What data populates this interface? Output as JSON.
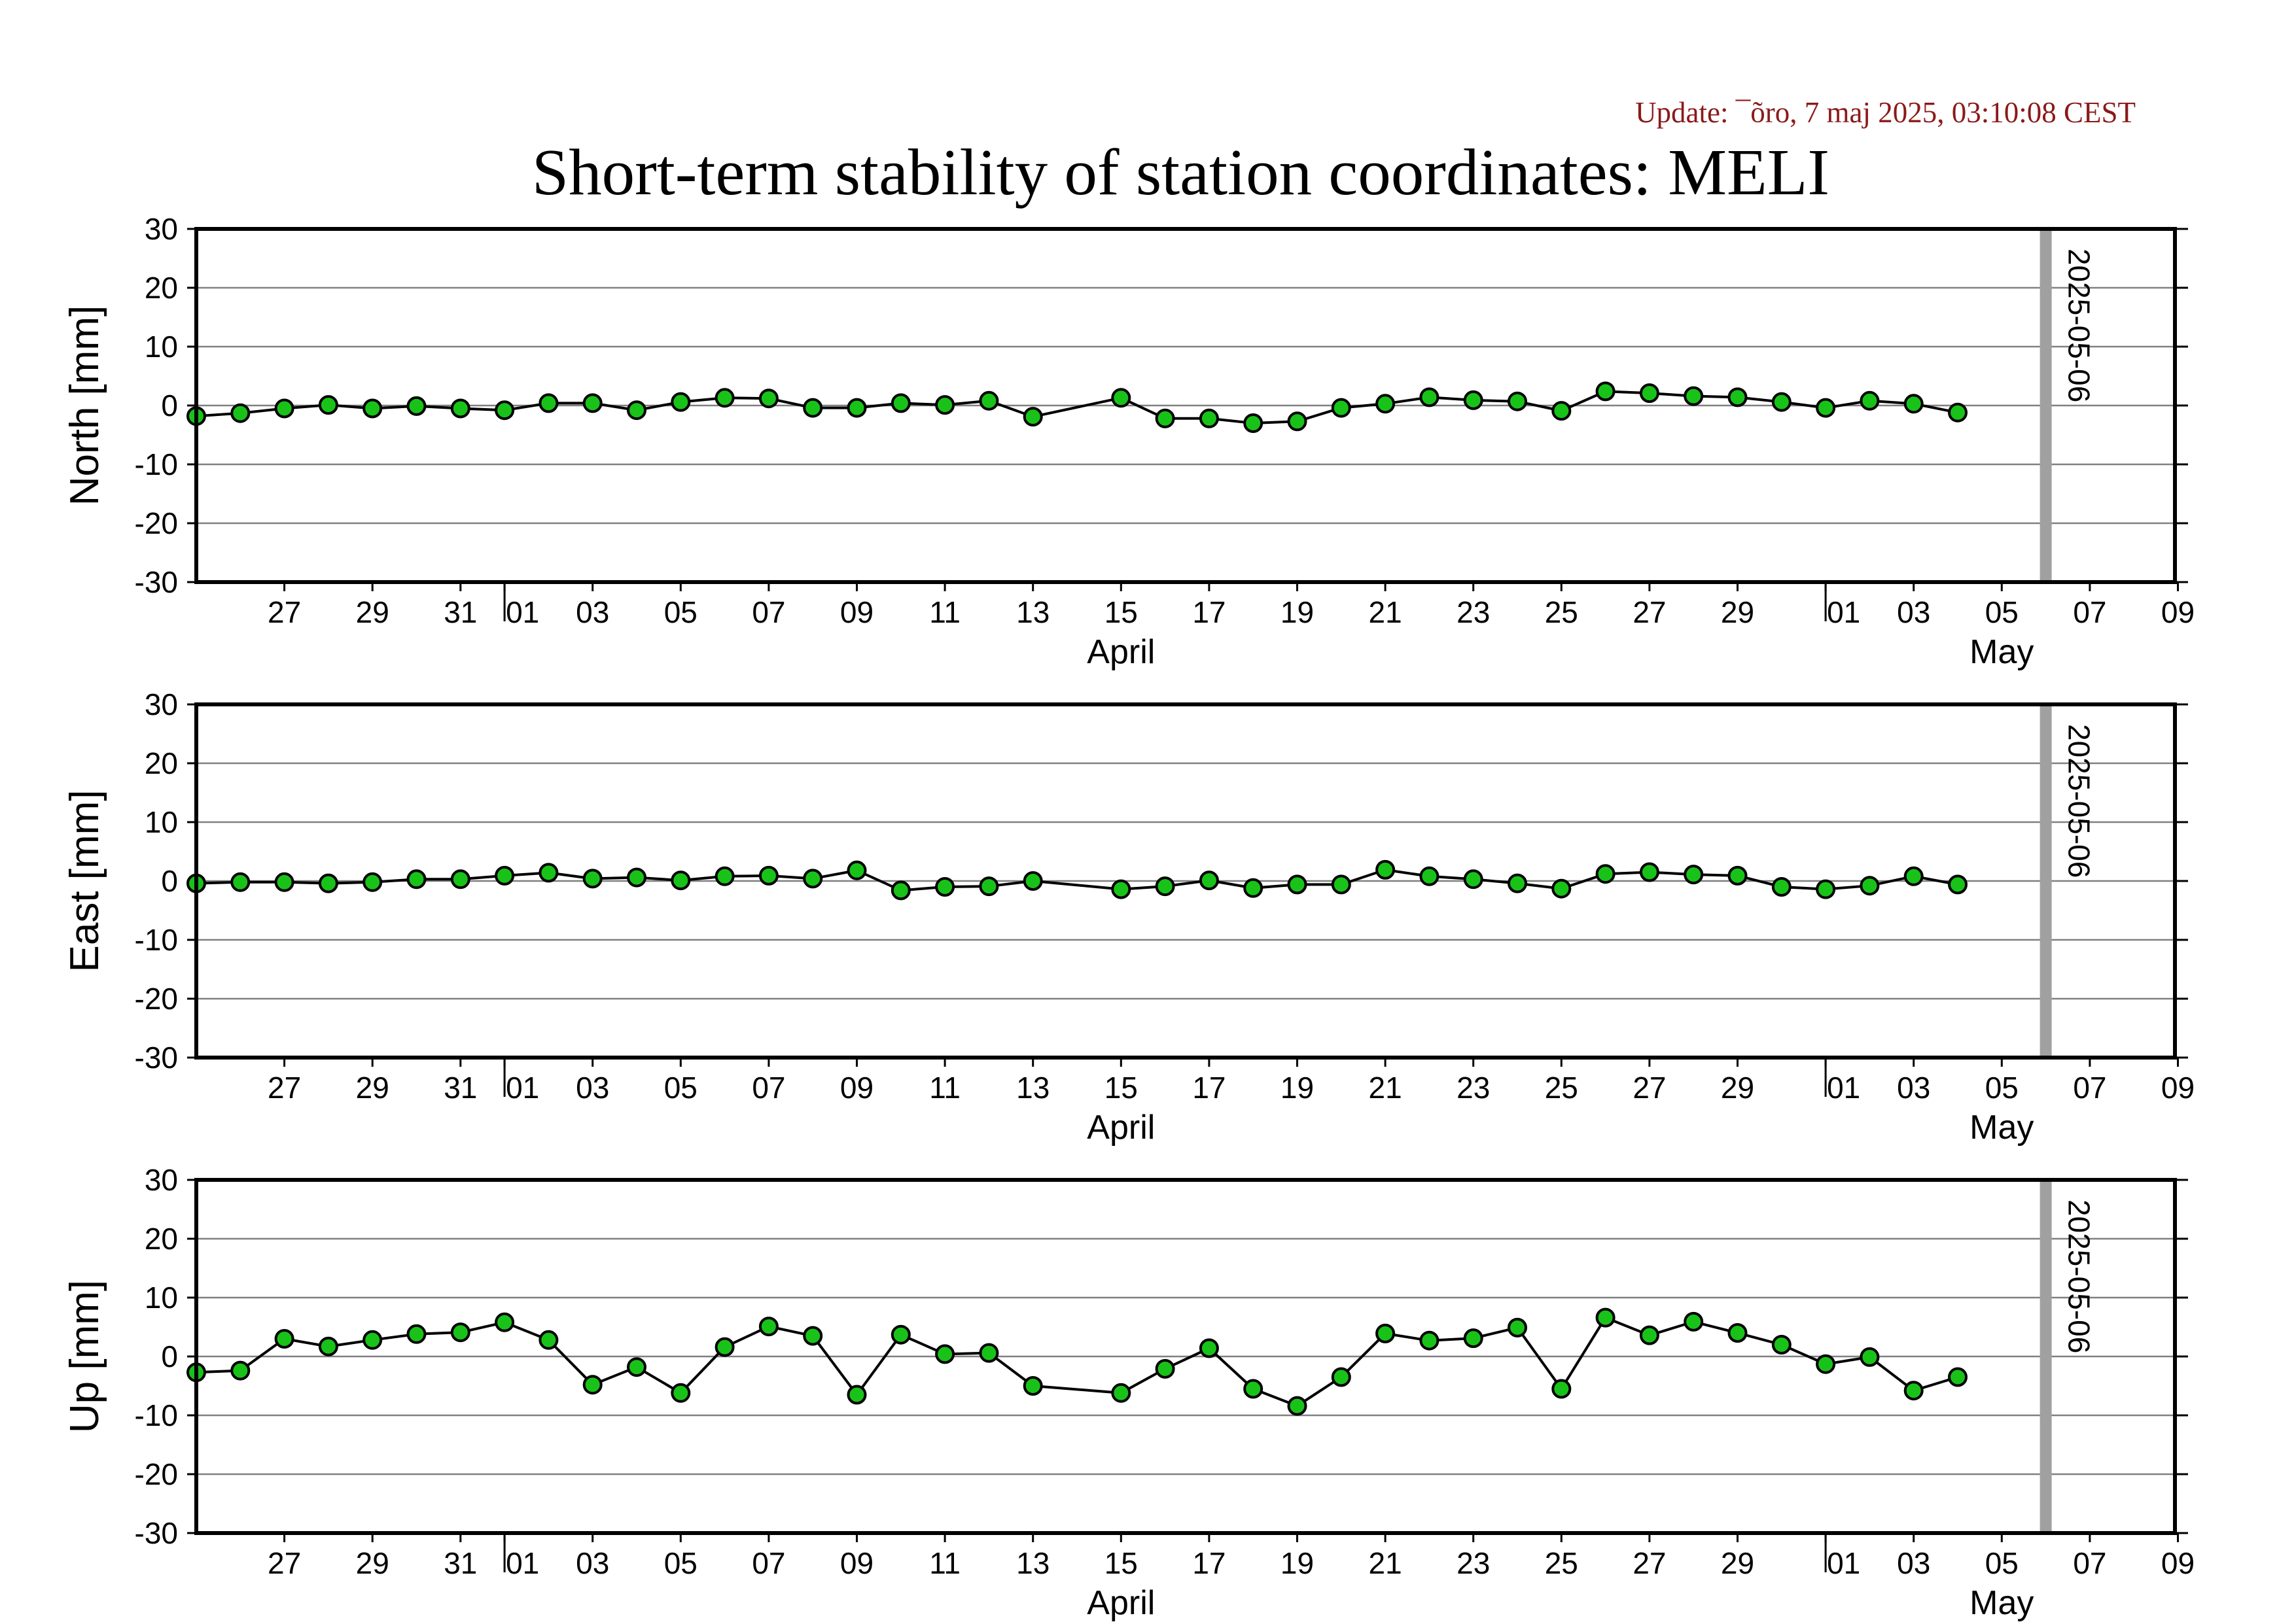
{
  "header": {
    "update_text": "Update: ¯õro, 7 maj 2025, 03:10:08 CEST",
    "title": "Short-term stability of station coordinates: MELI"
  },
  "colors": {
    "update_text": "#8b1a1a",
    "marker_fill": "#19c219",
    "marker_stroke": "#000000",
    "line": "#000000",
    "grid": "#808080",
    "date_marker": "#a0a0a0",
    "frame": "#000000"
  },
  "chart_data": [
    {
      "type": "line",
      "ylabel": "North [mm]",
      "ylim": [
        -30,
        30
      ],
      "yticks": [
        30,
        20,
        10,
        0,
        -10,
        -20,
        -30
      ],
      "grid": true,
      "xlim": [
        "2025-03-25",
        "2025-05-10"
      ],
      "xtick_labels": [
        "27",
        "29",
        "31",
        "01",
        "03",
        "05",
        "07",
        "09",
        "11",
        "13",
        "15",
        "17",
        "19",
        "21",
        "23",
        "25",
        "27",
        "29",
        "01",
        "03",
        "05",
        "07",
        "09"
      ],
      "month_labels": [
        "April",
        "May"
      ],
      "date_marker": "2025-05-06",
      "x": [
        "2025-03-25",
        "2025-03-26",
        "2025-03-27",
        "2025-03-28",
        "2025-03-29",
        "2025-03-30",
        "2025-03-31",
        "2025-04-01",
        "2025-04-02",
        "2025-04-03",
        "2025-04-04",
        "2025-04-05",
        "2025-04-06",
        "2025-04-07",
        "2025-04-08",
        "2025-04-09",
        "2025-04-10",
        "2025-04-11",
        "2025-04-12",
        "2025-04-13",
        "2025-04-15",
        "2025-04-16",
        "2025-04-17",
        "2025-04-18",
        "2025-04-19",
        "2025-04-20",
        "2025-04-21",
        "2025-04-22",
        "2025-04-23",
        "2025-04-24",
        "2025-04-25",
        "2025-04-26",
        "2025-04-27",
        "2025-04-28",
        "2025-04-29",
        "2025-04-30",
        "2025-05-01",
        "2025-05-02",
        "2025-05-03",
        "2025-05-04"
      ],
      "y": [
        -1.8,
        -1.3,
        -0.5,
        0.1,
        -0.5,
        -0.1,
        -0.5,
        -0.8,
        0.4,
        0.4,
        -0.8,
        0.6,
        1.3,
        1.2,
        -0.4,
        -0.4,
        0.4,
        0.1,
        0.8,
        -1.9,
        1.3,
        -2.2,
        -2.2,
        -3.0,
        -2.7,
        -0.4,
        0.3,
        1.4,
        0.9,
        0.7,
        -0.9,
        2.4,
        2.1,
        1.6,
        1.4,
        0.6,
        -0.4,
        0.8,
        0.3,
        -1.2
      ]
    },
    {
      "type": "line",
      "ylabel": "East [mm]",
      "ylim": [
        -30,
        30
      ],
      "yticks": [
        30,
        20,
        10,
        0,
        -10,
        -20,
        -30
      ],
      "grid": true,
      "xlim": [
        "2025-03-25",
        "2025-05-10"
      ],
      "xtick_labels": [
        "27",
        "29",
        "31",
        "01",
        "03",
        "05",
        "07",
        "09",
        "11",
        "13",
        "15",
        "17",
        "19",
        "21",
        "23",
        "25",
        "27",
        "29",
        "01",
        "03",
        "05",
        "07",
        "09"
      ],
      "month_labels": [
        "April",
        "May"
      ],
      "date_marker": "2025-05-06",
      "x": [
        "2025-03-25",
        "2025-03-26",
        "2025-03-27",
        "2025-03-28",
        "2025-03-29",
        "2025-03-30",
        "2025-03-31",
        "2025-04-01",
        "2025-04-02",
        "2025-04-03",
        "2025-04-04",
        "2025-04-05",
        "2025-04-06",
        "2025-04-07",
        "2025-04-08",
        "2025-04-09",
        "2025-04-10",
        "2025-04-11",
        "2025-04-12",
        "2025-04-13",
        "2025-04-15",
        "2025-04-16",
        "2025-04-17",
        "2025-04-18",
        "2025-04-19",
        "2025-04-20",
        "2025-04-21",
        "2025-04-22",
        "2025-04-23",
        "2025-04-24",
        "2025-04-25",
        "2025-04-26",
        "2025-04-27",
        "2025-04-28",
        "2025-04-29",
        "2025-04-30",
        "2025-05-01",
        "2025-05-02",
        "2025-05-03",
        "2025-05-04"
      ],
      "y": [
        -0.4,
        -0.2,
        -0.2,
        -0.4,
        -0.2,
        0.3,
        0.3,
        0.9,
        1.4,
        0.4,
        0.6,
        0.1,
        0.8,
        0.9,
        0.4,
        1.8,
        -1.6,
        -1.0,
        -0.9,
        0.0,
        -1.4,
        -0.9,
        0.1,
        -1.2,
        -0.6,
        -0.6,
        1.9,
        0.8,
        0.3,
        -0.4,
        -1.3,
        1.2,
        1.5,
        1.1,
        0.9,
        -1.0,
        -1.4,
        -0.8,
        0.8,
        -0.6
      ]
    },
    {
      "type": "line",
      "ylabel": "Up [mm]",
      "ylim": [
        -30,
        30
      ],
      "yticks": [
        30,
        20,
        10,
        0,
        -10,
        -20,
        -30
      ],
      "grid": true,
      "xlim": [
        "2025-03-25",
        "2025-05-10"
      ],
      "xtick_labels": [
        "27",
        "29",
        "31",
        "01",
        "03",
        "05",
        "07",
        "09",
        "11",
        "13",
        "15",
        "17",
        "19",
        "21",
        "23",
        "25",
        "27",
        "29",
        "01",
        "03",
        "05",
        "07",
        "09"
      ],
      "month_labels": [
        "April",
        "May"
      ],
      "date_marker": "2025-05-06",
      "x": [
        "2025-03-25",
        "2025-03-26",
        "2025-03-27",
        "2025-03-28",
        "2025-03-29",
        "2025-03-30",
        "2025-03-31",
        "2025-04-01",
        "2025-04-02",
        "2025-04-03",
        "2025-04-04",
        "2025-04-05",
        "2025-04-06",
        "2025-04-07",
        "2025-04-08",
        "2025-04-09",
        "2025-04-10",
        "2025-04-11",
        "2025-04-12",
        "2025-04-13",
        "2025-04-15",
        "2025-04-16",
        "2025-04-17",
        "2025-04-18",
        "2025-04-19",
        "2025-04-20",
        "2025-04-21",
        "2025-04-22",
        "2025-04-23",
        "2025-04-24",
        "2025-04-25",
        "2025-04-26",
        "2025-04-27",
        "2025-04-28",
        "2025-04-29",
        "2025-04-30",
        "2025-05-01",
        "2025-05-02",
        "2025-05-03",
        "2025-05-04"
      ],
      "y": [
        -2.7,
        -2.4,
        3.0,
        1.7,
        2.8,
        3.8,
        4.1,
        5.8,
        2.8,
        -4.8,
        -1.8,
        -6.2,
        1.6,
        5.1,
        3.5,
        -6.5,
        3.7,
        0.4,
        0.6,
        -5.0,
        -6.2,
        -2.1,
        1.4,
        -5.5,
        -8.4,
        -3.5,
        3.9,
        2.7,
        3.1,
        4.9,
        -5.5,
        6.6,
        3.6,
        5.9,
        4.0,
        2.0,
        -1.3,
        -0.1,
        -5.8,
        -3.5
      ]
    }
  ]
}
